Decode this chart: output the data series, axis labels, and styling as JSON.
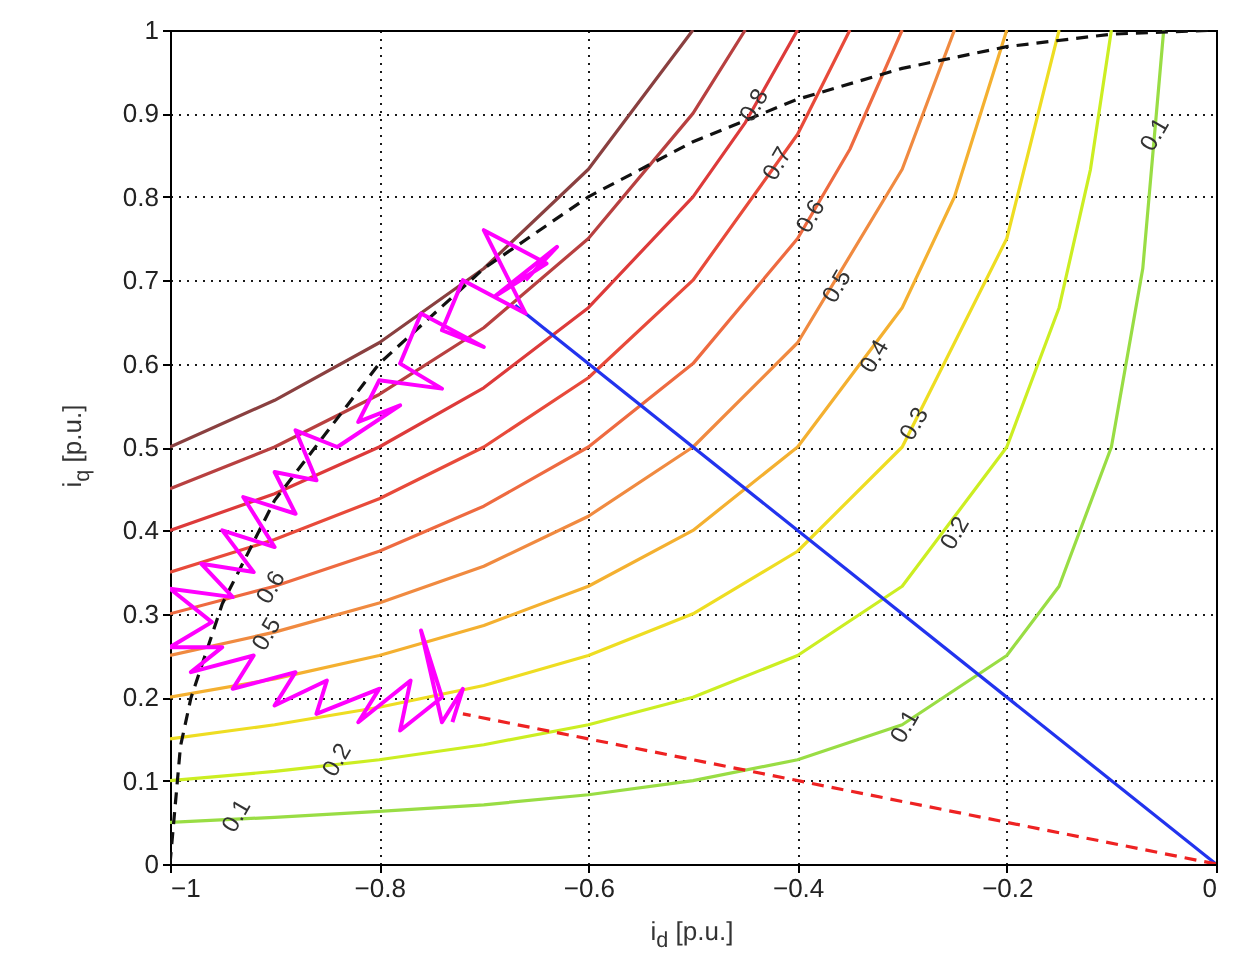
{
  "chart_data": {
    "type": "line",
    "xlabel": "i$_{d}$ [p.u.]",
    "ylabel": "i$_{q}$ [p.u.]",
    "xlim": [
      -1,
      0
    ],
    "xticks": [
      -1,
      -0.8,
      -0.6,
      -0.4,
      -0.2,
      0
    ],
    "ylim": [
      0,
      1
    ],
    "yticks": [
      0,
      0.1,
      0.2,
      0.3,
      0.4,
      0.5,
      0.6,
      0.7,
      0.8,
      0.9,
      1
    ],
    "grid": true,
    "marker": "none",
    "series": [
      {
        "color": "#99dd44",
        "x": [
          -1,
          -0.9,
          -0.8,
          -0.7,
          -0.6,
          -0.5,
          -0.4,
          -0.3,
          -0.2,
          -0.15,
          -0.1,
          -0.07,
          -0.05
        ],
        "values": [
          0.05,
          0.056,
          0.063,
          0.071,
          0.083,
          0.1,
          0.125,
          0.167,
          0.25,
          0.333,
          0.5,
          0.714,
          1
        ]
      },
      {
        "color": "#ccee22",
        "x": [
          -1,
          -0.9,
          -0.8,
          -0.7,
          -0.6,
          -0.5,
          -0.4,
          -0.3,
          -0.2,
          -0.15,
          -0.12,
          -0.1
        ],
        "values": [
          0.1,
          0.111,
          0.125,
          0.143,
          0.167,
          0.2,
          0.25,
          0.333,
          0.5,
          0.667,
          0.833,
          1
        ]
      },
      {
        "color": "#eedd22",
        "x": [
          -1,
          -0.9,
          -0.8,
          -0.7,
          -0.6,
          -0.5,
          -0.4,
          -0.3,
          -0.2,
          -0.15
        ],
        "values": [
          0.15,
          0.167,
          0.188,
          0.214,
          0.25,
          0.3,
          0.375,
          0.5,
          0.75,
          1
        ]
      },
      {
        "color": "#f4b030",
        "x": [
          -1,
          -0.9,
          -0.8,
          -0.7,
          -0.6,
          -0.5,
          -0.4,
          -0.3,
          -0.25,
          -0.2
        ],
        "values": [
          0.2,
          0.222,
          0.25,
          0.286,
          0.333,
          0.4,
          0.5,
          0.667,
          0.8,
          1
        ]
      },
      {
        "color": "#f08a40",
        "x": [
          -1,
          -0.9,
          -0.8,
          -0.7,
          -0.6,
          -0.5,
          -0.4,
          -0.3,
          -0.25
        ],
        "values": [
          0.25,
          0.278,
          0.313,
          0.357,
          0.417,
          0.5,
          0.625,
          0.833,
          1
        ]
      },
      {
        "color": "#ee6a40",
        "x": [
          -1,
          -0.9,
          -0.8,
          -0.7,
          -0.6,
          -0.5,
          -0.4,
          -0.35,
          -0.3
        ],
        "values": [
          0.3,
          0.333,
          0.375,
          0.429,
          0.5,
          0.6,
          0.75,
          0.857,
          1
        ]
      },
      {
        "color": "#e84a3a",
        "x": [
          -1,
          -0.9,
          -0.8,
          -0.7,
          -0.6,
          -0.5,
          -0.4,
          -0.35
        ],
        "values": [
          0.35,
          0.389,
          0.438,
          0.5,
          0.583,
          0.7,
          0.875,
          1
        ]
      },
      {
        "color": "#dd3a3a",
        "x": [
          -1,
          -0.9,
          -0.8,
          -0.7,
          -0.6,
          -0.5,
          -0.45,
          -0.4
        ],
        "values": [
          0.4,
          0.444,
          0.5,
          0.571,
          0.667,
          0.8,
          0.889,
          1
        ]
      },
      {
        "color": "#b84040",
        "x": [
          -1,
          -0.9,
          -0.8,
          -0.7,
          -0.6,
          -0.5,
          -0.45
        ],
        "values": [
          0.45,
          0.5,
          0.563,
          0.643,
          0.75,
          0.9,
          1
        ]
      },
      {
        "color": "#8a4040",
        "x": [
          -1,
          -0.9,
          -0.8,
          -0.7,
          -0.6,
          -0.5
        ],
        "values": [
          0.5,
          0.556,
          0.625,
          0.714,
          0.833,
          1
        ]
      },
      {
        "color": "#111111",
        "line_style": "dashed",
        "x": [
          -1,
          -0.99,
          -0.98,
          -0.95,
          -0.9,
          -0.8,
          -0.7,
          -0.6,
          -0.5,
          -0.4,
          -0.3,
          -0.2,
          -0.1,
          0
        ],
        "values": [
          0,
          0.141,
          0.199,
          0.312,
          0.436,
          0.6,
          0.714,
          0.8,
          0.866,
          0.917,
          0.954,
          0.98,
          0.995,
          1
        ]
      },
      {
        "color": "#2233ee",
        "x": [
          0,
          -0.67
        ],
        "values": [
          0,
          0.67
        ]
      },
      {
        "color": "#ee2222",
        "line_style": "dashed",
        "x": [
          0,
          -0.72
        ],
        "values": [
          0,
          0.18
        ]
      },
      {
        "color": "#ff00ff",
        "x": [
          -0.66,
          -0.63,
          -0.69,
          -0.64,
          -0.7,
          -0.66,
          -0.72,
          -0.74,
          -0.7,
          -0.76,
          -0.78,
          -0.74,
          -0.8,
          -0.82,
          -0.78,
          -0.84,
          -0.88,
          -0.86,
          -0.9,
          -0.88,
          -0.93,
          -0.9,
          -0.95,
          -0.92,
          -0.97,
          -0.94,
          -1,
          -0.96,
          -1,
          -0.95,
          -0.98,
          -0.92,
          -0.94,
          -0.88,
          -0.9,
          -0.85,
          -0.86,
          -0.8,
          -0.82,
          -0.77,
          -0.78,
          -0.74,
          -0.76,
          -0.74,
          -0.72,
          -0.73
        ],
        "values": [
          0.7,
          0.74,
          0.68,
          0.72,
          0.76,
          0.66,
          0.7,
          0.64,
          0.62,
          0.66,
          0.6,
          0.57,
          0.58,
          0.53,
          0.55,
          0.5,
          0.52,
          0.46,
          0.47,
          0.42,
          0.44,
          0.38,
          0.4,
          0.35,
          0.36,
          0.32,
          0.33,
          0.29,
          0.26,
          0.26,
          0.23,
          0.25,
          0.21,
          0.23,
          0.19,
          0.22,
          0.18,
          0.21,
          0.17,
          0.22,
          0.16,
          0.2,
          0.28,
          0.17,
          0.21,
          0.17
        ]
      }
    ],
    "annotations": [
      {
        "text": "0.8",
        "x": -0.442,
        "y": 0.91
      },
      {
        "text": "0.7",
        "x": -0.42,
        "y": 0.84
      },
      {
        "text": "0.6",
        "x": -0.388,
        "y": 0.777
      },
      {
        "text": "0.5",
        "x": -0.363,
        "y": 0.693
      },
      {
        "text": "0.4",
        "x": -0.327,
        "y": 0.609
      },
      {
        "text": "0.3",
        "x": -0.289,
        "y": 0.528
      },
      {
        "text": "0.1",
        "x": -0.059,
        "y": 0.875
      },
      {
        "text": "0.2",
        "x": -0.25,
        "y": 0.397
      },
      {
        "text": "0.1",
        "x": -0.298,
        "y": 0.165
      },
      {
        "text": "0.1",
        "x": -0.937,
        "y": 0.058
      },
      {
        "text": "0.2",
        "x": -0.841,
        "y": 0.125
      },
      {
        "text": "0.5",
        "x": -0.908,
        "y": 0.276
      },
      {
        "text": "0.6",
        "x": -0.904,
        "y": 0.332
      }
    ]
  }
}
